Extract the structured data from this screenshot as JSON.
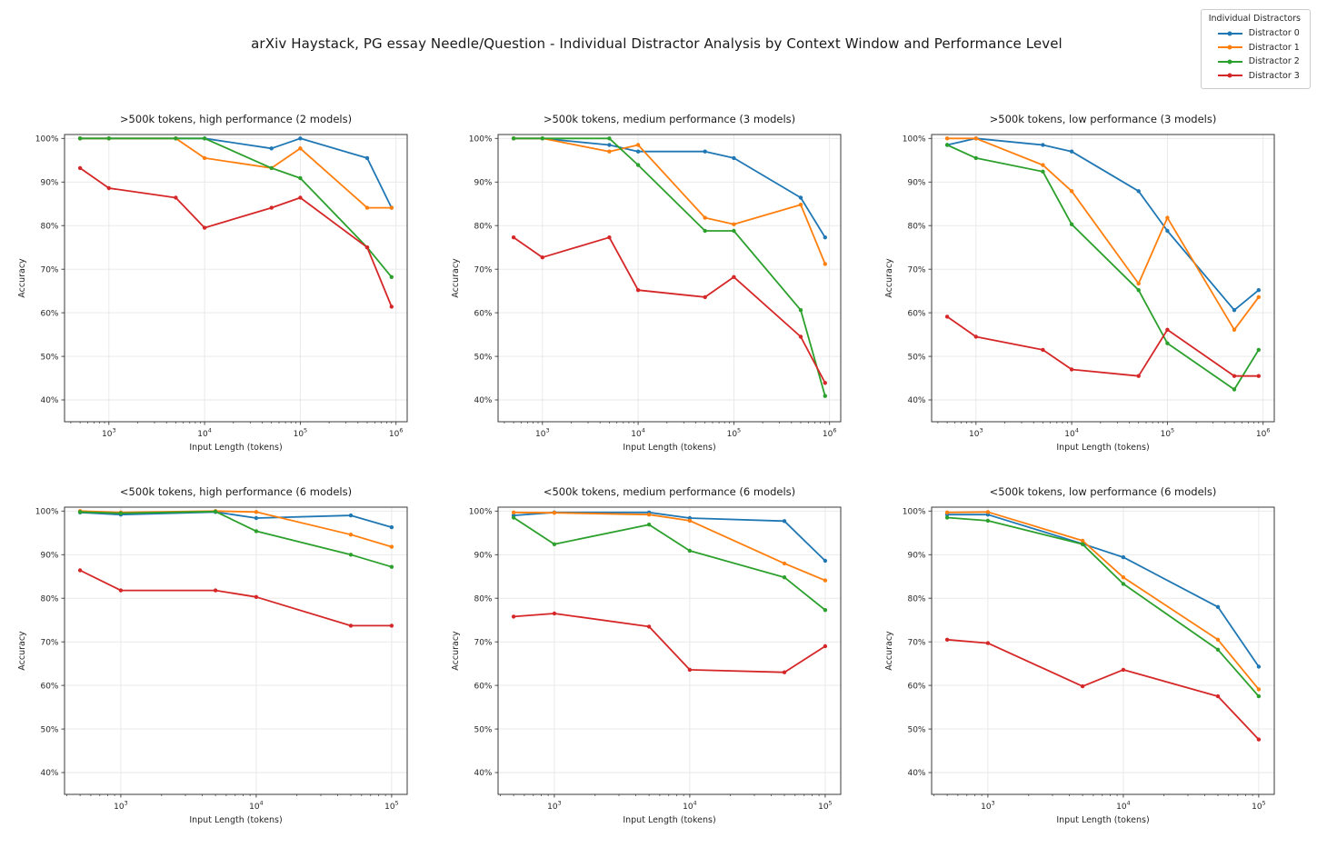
{
  "page_title": "arXiv Haystack, PG essay Needle/Question - Individual Distractor Analysis by Context Window and Performance Level",
  "legend": {
    "title": "Individual Distractors",
    "entries": [
      {
        "label": "Distractor 0",
        "color": "#1f77b4"
      },
      {
        "label": "Distractor 1",
        "color": "#ff7f0e"
      },
      {
        "label": "Distractor 2",
        "color": "#2ca02c"
      },
      {
        "label": "Distractor 3",
        "color": "#d62728"
      }
    ]
  },
  "chart_data": [
    {
      "type": "line",
      "title": ">500k tokens, high performance (2 models)",
      "xlabel": "Input Length (tokens)",
      "ylabel": "Accuracy",
      "xscale": "log",
      "grid": true,
      "xlim": [
        344,
        1310000
      ],
      "ylim": [
        35,
        100.9
      ],
      "yticks": [
        40,
        50,
        60,
        70,
        80,
        90,
        100
      ],
      "ytick_labels": [
        "40%",
        "50%",
        "60%",
        "70%",
        "80%",
        "90%",
        "100%"
      ],
      "xticks": [
        1000,
        10000,
        100000,
        1000000
      ],
      "xtick_exponents": [
        3,
        4,
        5,
        6
      ],
      "x": [
        500,
        1000,
        5000,
        10000,
        50000,
        100000,
        500000,
        900000
      ],
      "series": [
        {
          "name": "Distractor 0",
          "color": "#1f77b4",
          "values": [
            100,
            100,
            100,
            100,
            97.7,
            100,
            95.5,
            84.1
          ]
        },
        {
          "name": "Distractor 1",
          "color": "#ff7f0e",
          "values": [
            100,
            100,
            100,
            95.5,
            93.2,
            97.7,
            84.1,
            84.1
          ]
        },
        {
          "name": "Distractor 2",
          "color": "#2ca02c",
          "values": [
            100,
            100,
            100,
            100,
            93.2,
            90.9,
            75.0,
            68.2
          ]
        },
        {
          "name": "Distractor 3",
          "color": "#d62728",
          "values": [
            93.2,
            88.6,
            86.4,
            79.5,
            84.1,
            86.4,
            75.0,
            61.4
          ]
        }
      ]
    },
    {
      "type": "line",
      "title": ">500k tokens, medium performance (3 models)",
      "xlabel": "Input Length (tokens)",
      "ylabel": "Accuracy",
      "xscale": "log",
      "grid": true,
      "xlim": [
        344,
        1310000
      ],
      "ylim": [
        35,
        100.9
      ],
      "yticks": [
        40,
        50,
        60,
        70,
        80,
        90,
        100
      ],
      "ytick_labels": [
        "40%",
        "50%",
        "60%",
        "70%",
        "80%",
        "90%",
        "100%"
      ],
      "xticks": [
        1000,
        10000,
        100000,
        1000000
      ],
      "xtick_exponents": [
        3,
        4,
        5,
        6
      ],
      "x": [
        500,
        1000,
        5000,
        10000,
        50000,
        100000,
        500000,
        900000
      ],
      "series": [
        {
          "name": "Distractor 0",
          "color": "#1f77b4",
          "values": [
            100,
            100,
            98.5,
            97.0,
            97.0,
            95.5,
            86.4,
            77.3
          ]
        },
        {
          "name": "Distractor 1",
          "color": "#ff7f0e",
          "values": [
            100,
            100,
            97.0,
            98.5,
            81.8,
            80.3,
            84.8,
            71.2
          ]
        },
        {
          "name": "Distractor 2",
          "color": "#2ca02c",
          "values": [
            100,
            100,
            100,
            93.9,
            78.8,
            78.8,
            60.6,
            40.9
          ]
        },
        {
          "name": "Distractor 3",
          "color": "#d62728",
          "values": [
            77.3,
            72.7,
            77.3,
            65.2,
            63.6,
            68.2,
            54.5,
            43.9
          ]
        }
      ]
    },
    {
      "type": "line",
      "title": ">500k tokens, low performance (3 models)",
      "xlabel": "Input Length (tokens)",
      "ylabel": "Accuracy",
      "xscale": "log",
      "grid": true,
      "xlim": [
        344,
        1310000
      ],
      "ylim": [
        35,
        100.9
      ],
      "yticks": [
        40,
        50,
        60,
        70,
        80,
        90,
        100
      ],
      "ytick_labels": [
        "40%",
        "50%",
        "60%",
        "70%",
        "80%",
        "90%",
        "100%"
      ],
      "xticks": [
        1000,
        10000,
        100000,
        1000000
      ],
      "xtick_exponents": [
        3,
        4,
        5,
        6
      ],
      "x": [
        500,
        1000,
        5000,
        10000,
        50000,
        100000,
        500000,
        900000
      ],
      "series": [
        {
          "name": "Distractor 0",
          "color": "#1f77b4",
          "values": [
            98.5,
            100,
            98.5,
            97.0,
            87.9,
            78.8,
            60.6,
            65.2
          ]
        },
        {
          "name": "Distractor 1",
          "color": "#ff7f0e",
          "values": [
            100,
            100,
            93.9,
            87.9,
            66.7,
            81.8,
            56.1,
            63.6
          ]
        },
        {
          "name": "Distractor 2",
          "color": "#2ca02c",
          "values": [
            98.5,
            95.5,
            92.4,
            80.3,
            65.2,
            53.0,
            42.4,
            51.5
          ]
        },
        {
          "name": "Distractor 3",
          "color": "#d62728",
          "values": [
            59.1,
            54.5,
            51.5,
            47.0,
            45.5,
            56.1,
            45.5,
            45.5
          ]
        }
      ]
    },
    {
      "type": "line",
      "title": "<500k tokens, high performance (6 models)",
      "xlabel": "Input Length (tokens)",
      "ylabel": "Accuracy",
      "xscale": "log",
      "grid": true,
      "xlim": [
        384,
        130300
      ],
      "ylim": [
        35,
        100.9
      ],
      "yticks": [
        40,
        50,
        60,
        70,
        80,
        90,
        100
      ],
      "ytick_labels": [
        "40%",
        "50%",
        "60%",
        "70%",
        "80%",
        "90%",
        "100%"
      ],
      "xticks": [
        1000,
        10000,
        100000
      ],
      "xtick_exponents": [
        3,
        4,
        5
      ],
      "x": [
        500,
        1000,
        5000,
        10000,
        50000,
        100000
      ],
      "series": [
        {
          "name": "Distractor 0",
          "color": "#1f77b4",
          "values": [
            99.7,
            99.2,
            99.8,
            98.4,
            99.0,
            96.3
          ]
        },
        {
          "name": "Distractor 1",
          "color": "#ff7f0e",
          "values": [
            100,
            99.7,
            100,
            99.8,
            94.6,
            91.8
          ]
        },
        {
          "name": "Distractor 2",
          "color": "#2ca02c",
          "values": [
            99.8,
            99.5,
            99.9,
            95.4,
            90.0,
            87.2
          ]
        },
        {
          "name": "Distractor 3",
          "color": "#d62728",
          "values": [
            86.4,
            81.8,
            81.8,
            80.3,
            73.7,
            73.7
          ]
        }
      ]
    },
    {
      "type": "line",
      "title": "<500k tokens, medium performance (6 models)",
      "xlabel": "Input Length (tokens)",
      "ylabel": "Accuracy",
      "xscale": "log",
      "grid": true,
      "xlim": [
        384,
        130300
      ],
      "ylim": [
        35,
        100.9
      ],
      "yticks": [
        40,
        50,
        60,
        70,
        80,
        90,
        100
      ],
      "ytick_labels": [
        "40%",
        "50%",
        "60%",
        "70%",
        "80%",
        "90%",
        "100%"
      ],
      "xticks": [
        1000,
        10000,
        100000
      ],
      "xtick_exponents": [
        3,
        4,
        5
      ],
      "x": [
        500,
        1000,
        5000,
        10000,
        50000,
        100000
      ],
      "series": [
        {
          "name": "Distractor 0",
          "color": "#1f77b4",
          "values": [
            99.0,
            99.7,
            99.7,
            98.4,
            97.7,
            88.6
          ]
        },
        {
          "name": "Distractor 1",
          "color": "#ff7f0e",
          "values": [
            99.7,
            99.6,
            99.2,
            97.8,
            88.0,
            84.1
          ]
        },
        {
          "name": "Distractor 2",
          "color": "#2ca02c",
          "values": [
            98.5,
            92.4,
            96.9,
            90.9,
            84.8,
            77.3
          ]
        },
        {
          "name": "Distractor 3",
          "color": "#d62728",
          "values": [
            75.8,
            76.5,
            73.5,
            63.6,
            63.0,
            69.0
          ]
        }
      ]
    },
    {
      "type": "line",
      "title": "<500k tokens, low performance (6 models)",
      "xlabel": "Input Length (tokens)",
      "ylabel": "Accuracy",
      "xscale": "log",
      "grid": true,
      "xlim": [
        384,
        130300
      ],
      "ylim": [
        35,
        100.9
      ],
      "yticks": [
        40,
        50,
        60,
        70,
        80,
        90,
        100
      ],
      "ytick_labels": [
        "40%",
        "50%",
        "60%",
        "70%",
        "80%",
        "90%",
        "100%"
      ],
      "xticks": [
        1000,
        10000,
        100000
      ],
      "xtick_exponents": [
        3,
        4,
        5
      ],
      "x": [
        500,
        1000,
        5000,
        10000,
        50000,
        100000
      ],
      "series": [
        {
          "name": "Distractor 0",
          "color": "#1f77b4",
          "values": [
            99.2,
            99.2,
            92.5,
            89.4,
            78.0,
            64.3
          ]
        },
        {
          "name": "Distractor 1",
          "color": "#ff7f0e",
          "values": [
            99.7,
            99.8,
            93.2,
            84.8,
            70.5,
            59.1
          ]
        },
        {
          "name": "Distractor 2",
          "color": "#2ca02c",
          "values": [
            98.5,
            97.8,
            92.4,
            83.3,
            68.2,
            57.5
          ]
        },
        {
          "name": "Distractor 3",
          "color": "#d62728",
          "values": [
            70.5,
            69.7,
            59.8,
            63.6,
            57.5,
            47.6
          ]
        }
      ]
    }
  ]
}
